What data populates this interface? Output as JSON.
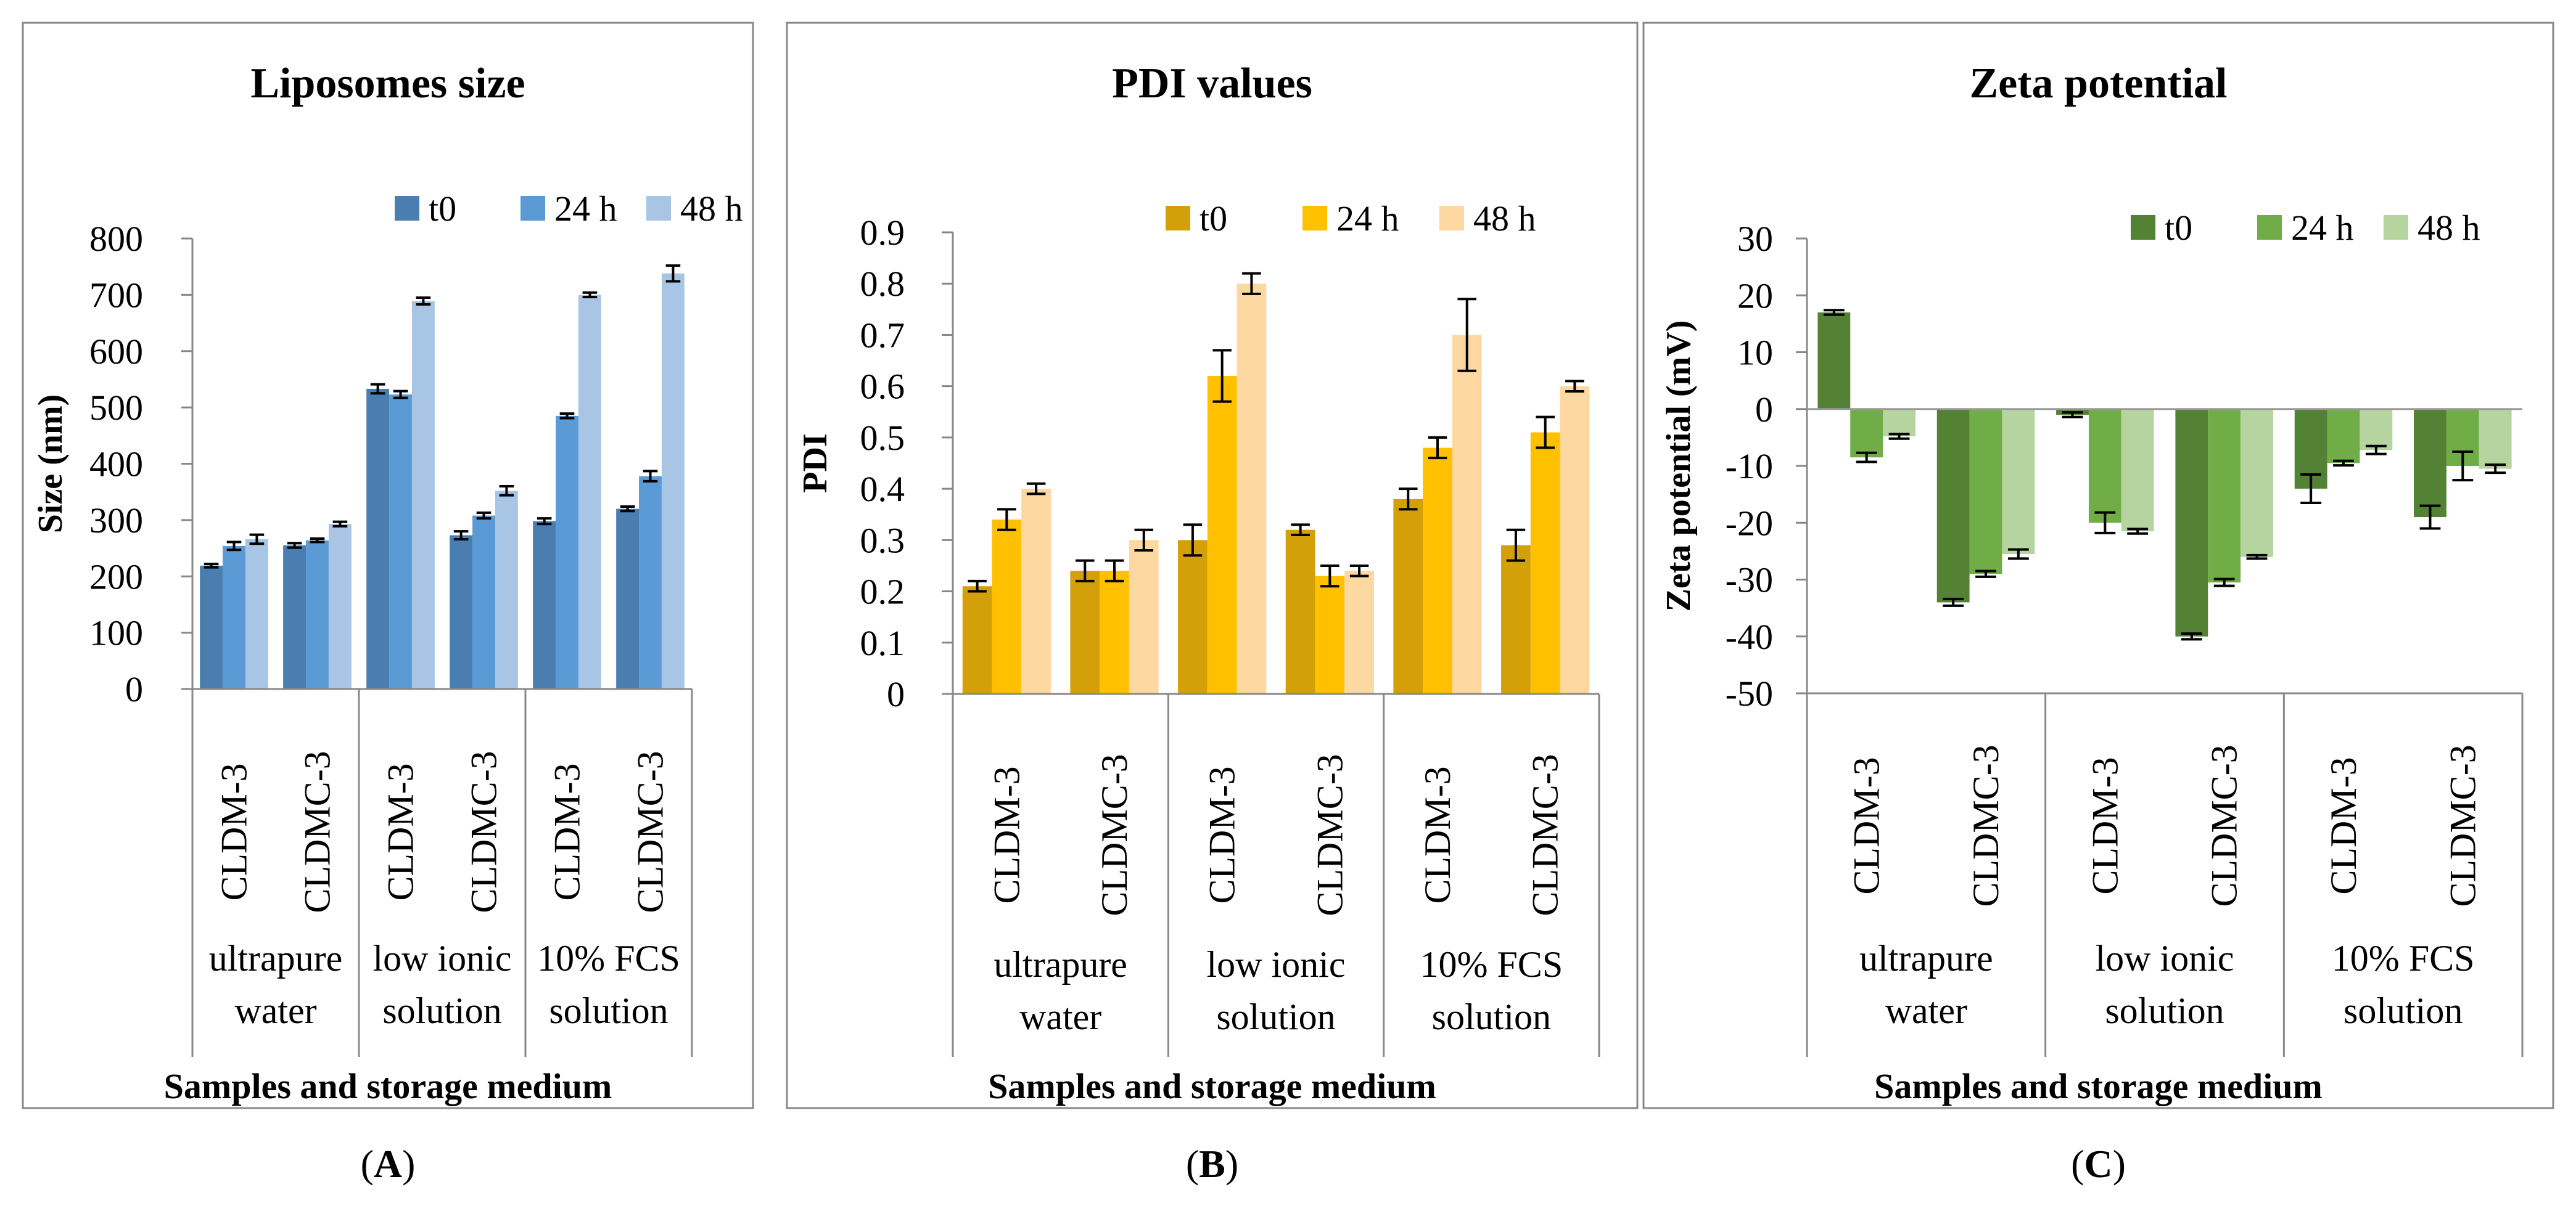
{
  "figure": {
    "category_labels": [
      "CLDM-3",
      "CLDMC-3",
      "CLDM-3",
      "CLDMC-3",
      "CLDM-3",
      "CLDMC-3"
    ],
    "groups": [
      {
        "line1": "ultrapure",
        "line2": "water"
      },
      {
        "line1": "low ionic",
        "line2": "solution"
      },
      {
        "line1": "10% FCS",
        "line2": "solution"
      }
    ]
  },
  "chart_data": [
    {
      "type": "bar",
      "panel_label": "A",
      "title": "Liposomes size",
      "xlabel": "Samples and storage medium",
      "ylabel": "Size (nm)",
      "ylim": [
        0,
        800
      ],
      "yticks": [
        0,
        100,
        200,
        300,
        400,
        500,
        600,
        700,
        800
      ],
      "legend_position": "top-right",
      "categories": [
        "CLDM-3",
        "CLDMC-3",
        "CLDM-3",
        "CLDMC-3",
        "CLDM-3",
        "CLDMC-3"
      ],
      "series": [
        {
          "name": "t0",
          "color": "#4a7eb0",
          "values": [
            219,
            255,
            533,
            273,
            298,
            320
          ],
          "errors": [
            3,
            4,
            8,
            7,
            5,
            4
          ]
        },
        {
          "name": "24 h",
          "color": "#5b9bd5",
          "values": [
            254,
            264,
            523,
            308,
            485,
            378
          ],
          "errors": [
            7,
            3,
            6,
            5,
            4,
            9
          ]
        },
        {
          "name": "48 h",
          "color": "#a9c5e6",
          "values": [
            266,
            293,
            689,
            352,
            700,
            738
          ],
          "errors": [
            8,
            4,
            6,
            8,
            4,
            14
          ]
        }
      ]
    },
    {
      "type": "bar",
      "panel_label": "B",
      "title": "PDI values",
      "xlabel": "Samples and storage medium",
      "ylabel": "PDI",
      "ylim": [
        0,
        0.9
      ],
      "yticks": [
        0,
        0.1,
        0.2,
        0.3,
        0.4,
        0.5,
        0.6,
        0.7,
        0.8,
        0.9
      ],
      "legend_position": "top-right",
      "categories": [
        "CLDM-3",
        "CLDMC-3",
        "CLDM-3",
        "CLDMC-3",
        "CLDM-3",
        "CLDMC-3"
      ],
      "series": [
        {
          "name": "t0",
          "color": "#d4a00a",
          "values": [
            0.21,
            0.24,
            0.3,
            0.32,
            0.38,
            0.29
          ],
          "errors": [
            0.01,
            0.02,
            0.03,
            0.01,
            0.02,
            0.03
          ]
        },
        {
          "name": "24 h",
          "color": "#ffc000",
          "values": [
            0.34,
            0.24,
            0.62,
            0.23,
            0.48,
            0.51
          ],
          "errors": [
            0.02,
            0.02,
            0.05,
            0.02,
            0.02,
            0.03
          ]
        },
        {
          "name": "48 h",
          "color": "#fdd8a0",
          "values": [
            0.4,
            0.3,
            0.8,
            0.24,
            0.7,
            0.6
          ],
          "errors": [
            0.01,
            0.02,
            0.02,
            0.01,
            0.07,
            0.01
          ]
        }
      ]
    },
    {
      "type": "bar",
      "panel_label": "C",
      "title": "Zeta potential",
      "xlabel": "Samples and storage medium",
      "ylabel": "Zeta potential (mV)",
      "ylim": [
        -50,
        30
      ],
      "yticks": [
        -50,
        -40,
        -30,
        -20,
        -10,
        0,
        10,
        20,
        30
      ],
      "legend_position": "top-right",
      "categories": [
        "CLDM-3",
        "CLDMC-3",
        "CLDM-3",
        "CLDMC-3",
        "CLDM-3",
        "CLDMC-3"
      ],
      "series": [
        {
          "name": "t0",
          "color": "#548235",
          "values": [
            17,
            -34,
            -1,
            -40,
            -14,
            -19
          ],
          "errors": [
            0.4,
            0.6,
            0.4,
            0.5,
            2.5,
            2
          ]
        },
        {
          "name": "24 h",
          "color": "#70ad47",
          "values": [
            -8.5,
            -29,
            -20,
            -30.5,
            -9.5,
            -10
          ],
          "errors": [
            0.8,
            0.5,
            1.8,
            0.6,
            0.4,
            2.5
          ]
        },
        {
          "name": "48 h",
          "color": "#b5d4a0",
          "values": [
            -4.8,
            -25.5,
            -21.5,
            -26,
            -7.2,
            -10.5
          ],
          "errors": [
            0.4,
            0.8,
            0.4,
            0.3,
            0.7,
            0.7
          ]
        }
      ]
    }
  ]
}
